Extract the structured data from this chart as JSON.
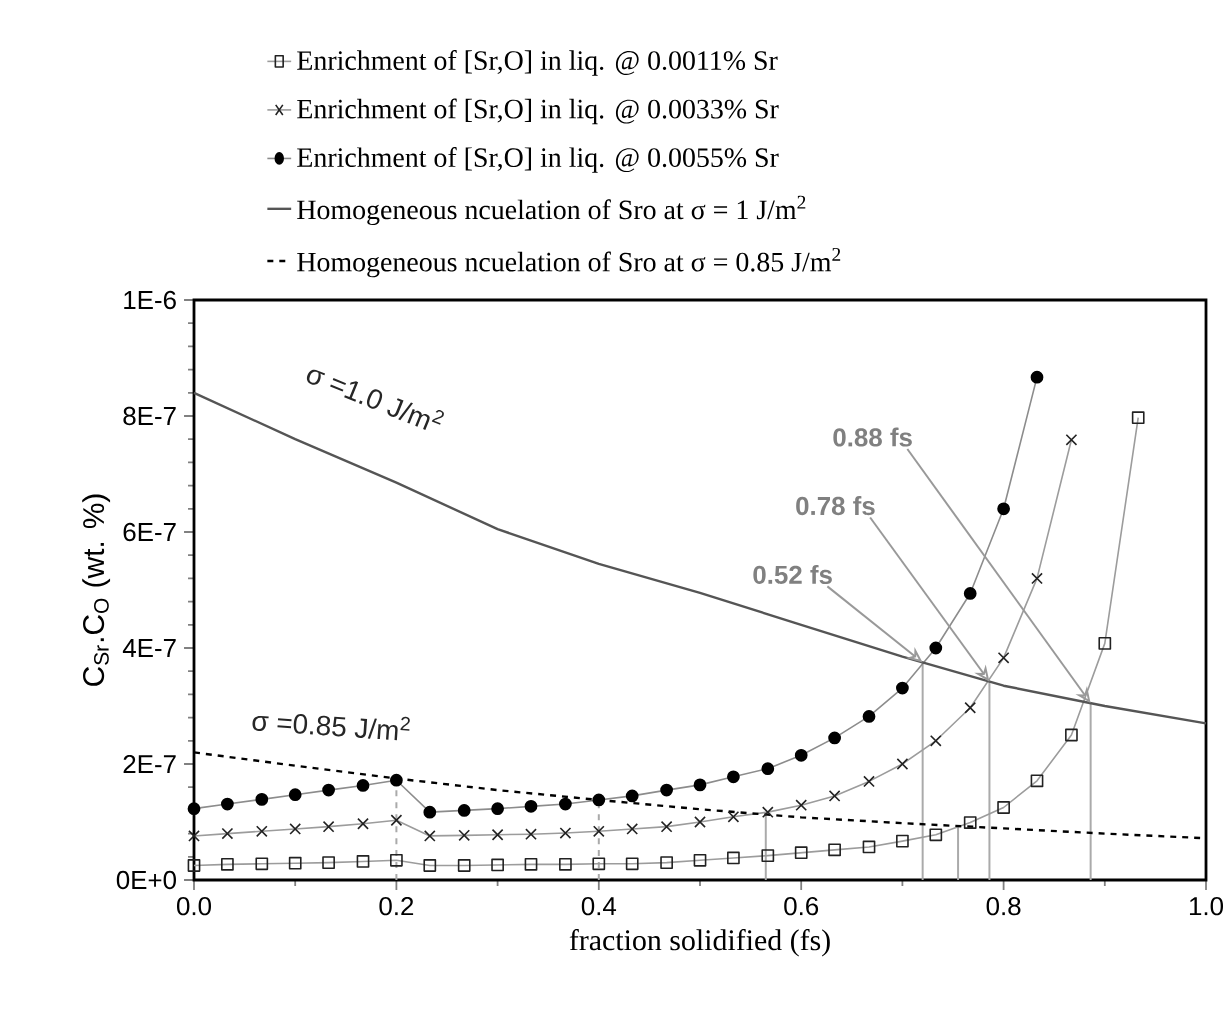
{
  "chart_data": {
    "type": "line",
    "xlabel": "fraction solidified (fs)",
    "ylabel": "C$_{Sr}$.C$_{O}$ (wt. %)",
    "xlim": [
      0,
      1
    ],
    "ylim": [
      0,
      1e-06
    ],
    "xticks": [
      {
        "value": 0,
        "label": "0.0"
      },
      {
        "value": 0.2,
        "label": "0.2"
      },
      {
        "value": 0.4,
        "label": "0.4"
      },
      {
        "value": 0.6,
        "label": "0.6"
      },
      {
        "value": 0.8,
        "label": "0.8"
      },
      {
        "value": 1,
        "label": "1.0"
      }
    ],
    "yticks": [
      {
        "value": 0,
        "label": "0E+0"
      },
      {
        "value": 2e-07,
        "label": "2E-7"
      },
      {
        "value": 4e-07,
        "label": "4E-7"
      },
      {
        "value": 6e-07,
        "label": "6E-7"
      },
      {
        "value": 8e-07,
        "label": "8E-7"
      },
      {
        "value": 1e-06,
        "label": "1E-6"
      }
    ],
    "legend": "top",
    "series": [
      {
        "name": "Enrichment of [Sr,O] in liq. @ 0.0011% Sr",
        "color": "#222222",
        "marker": "square",
        "line_style": "solid",
        "x": [
          0,
          0.033,
          0.067,
          0.1,
          0.133,
          0.167,
          0.2,
          0.233,
          0.267,
          0.3,
          0.333,
          0.367,
          0.4,
          0.433,
          0.467,
          0.5,
          0.533,
          0.567,
          0.6,
          0.633,
          0.667,
          0.7,
          0.733,
          0.767,
          0.8,
          0.833,
          0.867,
          0.9,
          0.933
        ],
        "values": [
          2.5e-08,
          2.7e-08,
          2.8e-08,
          2.9e-08,
          3e-08,
          3.2e-08,
          3.4e-08,
          2.5e-08,
          2.5e-08,
          2.6e-08,
          2.7e-08,
          2.7e-08,
          2.8e-08,
          2.8e-08,
          3e-08,
          3.4e-08,
          3.8e-08,
          4.2e-08,
          4.7e-08,
          5.2e-08,
          5.7e-08,
          6.7e-08,
          7.8e-08,
          9.9e-08,
          1.25e-07,
          1.71e-07,
          2.5e-07,
          4.08e-07,
          7.97e-07
        ]
      },
      {
        "name": "Enrichment of [Sr,O] in liq. @ 0.0033% Sr",
        "color": "#222222",
        "marker": "cross",
        "line_style": "solid",
        "x": [
          0,
          0.033,
          0.067,
          0.1,
          0.133,
          0.167,
          0.2,
          0.233,
          0.267,
          0.3,
          0.333,
          0.367,
          0.4,
          0.433,
          0.467,
          0.5,
          0.533,
          0.567,
          0.6,
          0.633,
          0.667,
          0.7,
          0.733,
          0.767,
          0.8,
          0.833,
          0.867
        ],
        "values": [
          7.6e-08,
          8e-08,
          8.4e-08,
          8.8e-08,
          9.2e-08,
          9.7e-08,
          1.03e-07,
          7.6e-08,
          7.7e-08,
          7.8e-08,
          7.9e-08,
          8.1e-08,
          8.4e-08,
          8.8e-08,
          9.2e-08,
          1e-07,
          1.09e-07,
          1.17e-07,
          1.29e-07,
          1.45e-07,
          1.7e-07,
          2e-07,
          2.4e-07,
          2.97e-07,
          3.83e-07,
          5.2e-07,
          7.59e-07
        ]
      },
      {
        "name": "Enrichment of [Sr,O] in liq. @ 0.0055% Sr",
        "color": "#000000",
        "marker": "circle",
        "line_style": "solid",
        "x": [
          0,
          0.033,
          0.067,
          0.1,
          0.133,
          0.167,
          0.2,
          0.233,
          0.267,
          0.3,
          0.333,
          0.367,
          0.4,
          0.433,
          0.467,
          0.5,
          0.533,
          0.567,
          0.6,
          0.633,
          0.667,
          0.7,
          0.733,
          0.767,
          0.8,
          0.833
        ],
        "values": [
          1.23e-07,
          1.31e-07,
          1.39e-07,
          1.47e-07,
          1.55e-07,
          1.63e-07,
          1.72e-07,
          1.17e-07,
          1.2e-07,
          1.23e-07,
          1.27e-07,
          1.31e-07,
          1.38e-07,
          1.45e-07,
          1.55e-07,
          1.64e-07,
          1.78e-07,
          1.92e-07,
          2.15e-07,
          2.45e-07,
          2.82e-07,
          3.31e-07,
          4e-07,
          4.94e-07,
          6.4e-07,
          8.67e-07
        ]
      },
      {
        "name": "Homogeneous ncuelation of Sro at σ = 1 J/m$^{2}$",
        "color": "#555555",
        "marker": "none",
        "line_style": "solid",
        "x": [
          0,
          0.1,
          0.2,
          0.3,
          0.4,
          0.5,
          0.6,
          0.7,
          0.8,
          0.9,
          1.0
        ],
        "values": [
          8.4e-07,
          7.6e-07,
          6.85e-07,
          6.05e-07,
          5.45e-07,
          4.95e-07,
          4.4e-07,
          3.85e-07,
          3.35e-07,
          3e-07,
          2.7e-07
        ]
      },
      {
        "name": "Homogeneous ncuelation of Sro at σ = 0.85 J/m$^{2}$",
        "color": "#000000",
        "marker": "none",
        "line_style": "dashed",
        "x": [
          0,
          0.1,
          0.2,
          0.3,
          0.4,
          0.5,
          0.6,
          0.7,
          0.8,
          0.9,
          1.0
        ],
        "values": [
          2.2e-07,
          1.97e-07,
          1.75e-07,
          1.55e-07,
          1.38e-07,
          1.22e-07,
          1.08e-07,
          9.8e-08,
          8.9e-08,
          8e-08,
          7.2e-08
        ]
      }
    ],
    "ref_lines": [
      {
        "axis": "x",
        "value": 0.2,
        "color": "#aaaaaa",
        "line_style": "dashed"
      },
      {
        "axis": "x",
        "value": 0.4,
        "color": "#aaaaaa",
        "line_style": "dashed"
      },
      {
        "axis": "x",
        "value": 0.565,
        "color": "#aaaaaa",
        "line_style": "solid"
      },
      {
        "axis": "x",
        "value": 0.755,
        "color": "#aaaaaa",
        "line_style": "solid"
      },
      {
        "axis": "x",
        "value": 0.72,
        "color": "#aaaaaa",
        "line_style": "solid"
      },
      {
        "axis": "x",
        "value": 0.786,
        "color": "#aaaaaa",
        "line_style": "solid"
      },
      {
        "axis": "x",
        "value": 0.886,
        "color": "#aaaaaa",
        "line_style": "solid"
      }
    ],
    "annotations": [
      {
        "text": "σ =1.0 J/m$^{2}$",
        "x": 0.12,
        "y": 7.5e-07
      },
      {
        "text": "σ =0.85 J/m$^{2}$",
        "x": 0.13,
        "y": 1.9e-07
      },
      {
        "text": "0.52 fs",
        "x": 0.72,
        "y": 3.75e-07
      },
      {
        "text": "0.78 fs",
        "x": 0.786,
        "y": 3.42e-07
      },
      {
        "text": "0.88 fs",
        "x": 0.886,
        "y": 3.05e-07
      }
    ]
  }
}
